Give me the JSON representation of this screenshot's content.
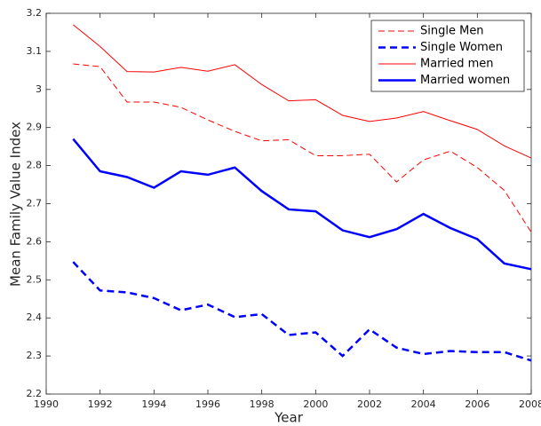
{
  "chart_data": {
    "type": "line",
    "x_label": "Year",
    "y_label": "Mean Family Value Index",
    "x": [
      1991,
      1992,
      1993,
      1994,
      1995,
      1996,
      1997,
      1998,
      1999,
      2000,
      2001,
      2002,
      2003,
      2004,
      2005,
      2006,
      2007,
      2008
    ],
    "series": [
      {
        "name": "Single Men",
        "color": "#ff0000",
        "linestyle": "dashed",
        "linewidth": 1,
        "values": [
          3.067,
          3.06,
          2.967,
          2.967,
          2.953,
          2.92,
          2.89,
          2.865,
          2.868,
          2.826,
          2.826,
          2.83,
          2.757,
          2.815,
          2.838,
          2.795,
          2.735,
          2.625
        ]
      },
      {
        "name": "Single Women",
        "color": "#0000ff",
        "linestyle": "dashed",
        "linewidth": 2.5,
        "values": [
          2.547,
          2.472,
          2.467,
          2.452,
          2.42,
          2.435,
          2.402,
          2.41,
          2.355,
          2.362,
          2.3,
          2.37,
          2.322,
          2.305,
          2.313,
          2.31,
          2.31,
          2.288
        ]
      },
      {
        "name": "Married men",
        "color": "#ff0000",
        "linestyle": "solid",
        "linewidth": 1,
        "values": [
          3.17,
          3.113,
          3.047,
          3.046,
          3.058,
          3.048,
          3.065,
          3.013,
          2.97,
          2.973,
          2.932,
          2.916,
          2.925,
          2.942,
          2.918,
          2.895,
          2.852,
          2.82
        ]
      },
      {
        "name": "Married women",
        "color": "#0000ff",
        "linestyle": "solid",
        "linewidth": 2.5,
        "values": [
          2.87,
          2.785,
          2.77,
          2.742,
          2.785,
          2.776,
          2.795,
          2.733,
          2.685,
          2.68,
          2.63,
          2.612,
          2.633,
          2.673,
          2.636,
          2.607,
          2.543,
          2.528
        ]
      }
    ],
    "xlim": [
      1990,
      2008
    ],
    "xticks": [
      1990,
      1992,
      1994,
      1996,
      1998,
      2000,
      2002,
      2004,
      2006,
      2008
    ],
    "ylim": [
      2.2,
      3.2
    ],
    "yticks": [
      2.2,
      2.3,
      2.4,
      2.5,
      2.6,
      2.7,
      2.8,
      2.9,
      3,
      3.1,
      3.2
    ],
    "legend": "upper right",
    "grid": false
  }
}
